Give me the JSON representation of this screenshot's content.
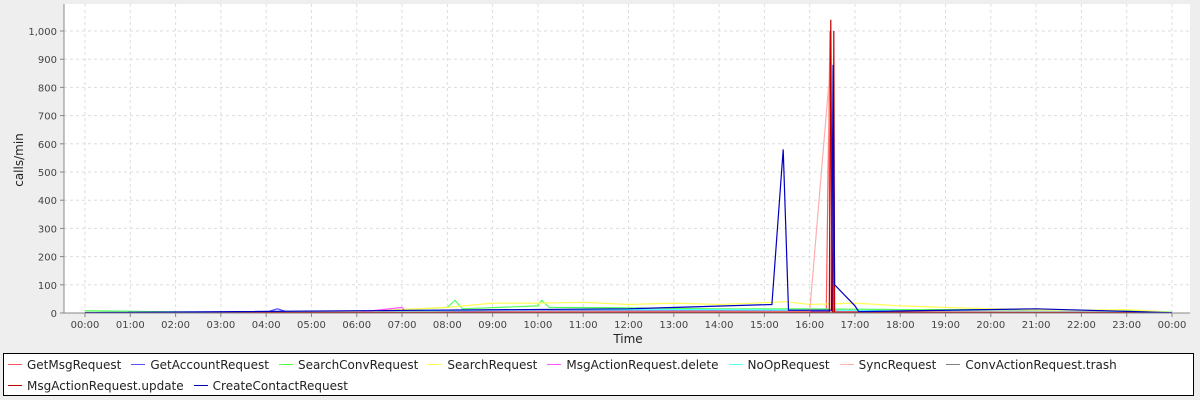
{
  "chart_data": {
    "type": "line",
    "title": "",
    "xlabel": "Time",
    "ylabel": "calls/min",
    "ylim": [
      0,
      1090
    ],
    "xlim": [
      "00:00",
      "24:00"
    ],
    "grid": true,
    "legend_position": "bottom",
    "yticks": [
      0,
      100,
      200,
      300,
      400,
      500,
      600,
      700,
      800,
      900,
      1000
    ],
    "ytick_labels": [
      "0",
      "100",
      "200",
      "300",
      "400",
      "500",
      "600",
      "700",
      "800",
      "900",
      "1,000"
    ],
    "xtick_labels": [
      "00:00",
      "01:00",
      "02:00",
      "03:00",
      "04:00",
      "05:00",
      "06:00",
      "07:00",
      "08:00",
      "09:00",
      "10:00",
      "11:00",
      "12:00",
      "13:00",
      "14:00",
      "15:00",
      "16:00",
      "17:00",
      "18:00",
      "19:00",
      "20:00",
      "21:00",
      "22:00",
      "23:00",
      "00:00"
    ],
    "series": [
      {
        "name": "GetMsgRequest",
        "color": "#ff5555",
        "points": [
          [
            "00:00",
            3
          ],
          [
            "03:00",
            2
          ],
          [
            "06:00",
            3
          ],
          [
            "08:00",
            8
          ],
          [
            "10:00",
            12
          ],
          [
            "12:00",
            12
          ],
          [
            "14:00",
            10
          ],
          [
            "16:00",
            10
          ],
          [
            "16:22",
            10
          ],
          [
            "16:27",
            1000
          ],
          [
            "16:30",
            10
          ],
          [
            "18:00",
            8
          ],
          [
            "20:00",
            6
          ],
          [
            "22:00",
            5
          ],
          [
            "24:00",
            3
          ]
        ]
      },
      {
        "name": "GetAccountRequest",
        "color": "#5555ff",
        "points": [
          [
            "00:00",
            2
          ],
          [
            "04:00",
            3
          ],
          [
            "04:15",
            15
          ],
          [
            "04:30",
            2
          ],
          [
            "08:00",
            5
          ],
          [
            "12:00",
            8
          ],
          [
            "16:00",
            6
          ],
          [
            "20:00",
            5
          ],
          [
            "24:00",
            2
          ]
        ]
      },
      {
        "name": "SearchConvRequest",
        "color": "#55ff55",
        "points": [
          [
            "00:00",
            8
          ],
          [
            "01:30",
            5
          ],
          [
            "03:00",
            3
          ],
          [
            "06:00",
            4
          ],
          [
            "08:00",
            20
          ],
          [
            "08:10",
            45
          ],
          [
            "08:20",
            15
          ],
          [
            "10:00",
            25
          ],
          [
            "10:05",
            45
          ],
          [
            "10:15",
            20
          ],
          [
            "12:00",
            18
          ],
          [
            "14:00",
            15
          ],
          [
            "16:00",
            15
          ],
          [
            "18:00",
            12
          ],
          [
            "20:00",
            12
          ],
          [
            "22:00",
            10
          ],
          [
            "24:00",
            4
          ]
        ]
      },
      {
        "name": "SearchRequest",
        "color": "#ffff55",
        "points": [
          [
            "00:00",
            3
          ],
          [
            "04:00",
            3
          ],
          [
            "06:00",
            5
          ],
          [
            "08:00",
            20
          ],
          [
            "09:00",
            35
          ],
          [
            "10:00",
            35
          ],
          [
            "11:00",
            38
          ],
          [
            "12:00",
            30
          ],
          [
            "13:00",
            35
          ],
          [
            "14:00",
            30
          ],
          [
            "15:30",
            40
          ],
          [
            "16:00",
            30
          ],
          [
            "17:00",
            35
          ],
          [
            "18:00",
            25
          ],
          [
            "19:00",
            20
          ],
          [
            "20:00",
            15
          ],
          [
            "21:00",
            12
          ],
          [
            "22:00",
            10
          ],
          [
            "23:00",
            12
          ],
          [
            "24:00",
            3
          ]
        ]
      },
      {
        "name": "MsgActionRequest.delete",
        "color": "#ff55ff",
        "points": [
          [
            "00:00",
            1
          ],
          [
            "06:00",
            2
          ],
          [
            "07:00",
            20
          ],
          [
            "07:05",
            2
          ],
          [
            "12:00",
            5
          ],
          [
            "14:00",
            4
          ],
          [
            "18:00",
            3
          ],
          [
            "24:00",
            1
          ]
        ]
      },
      {
        "name": "NoOpRequest",
        "color": "#55ffff",
        "points": [
          [
            "00:00",
            2
          ],
          [
            "06:00",
            3
          ],
          [
            "08:00",
            8
          ],
          [
            "10:00",
            12
          ],
          [
            "12:00",
            12
          ],
          [
            "14:00",
            12
          ],
          [
            "16:00",
            10
          ],
          [
            "18:00",
            8
          ],
          [
            "20:00",
            6
          ],
          [
            "24:00",
            2
          ]
        ]
      },
      {
        "name": "SyncRequest",
        "color": "#ffafaf",
        "points": [
          [
            "00:00",
            1
          ],
          [
            "07:00",
            3
          ],
          [
            "12:00",
            6
          ],
          [
            "16:00",
            5
          ],
          [
            "16:25",
            800
          ],
          [
            "16:28",
            5
          ],
          [
            "20:00",
            4
          ],
          [
            "24:00",
            1
          ]
        ]
      },
      {
        "name": "ConvActionRequest.trash",
        "color": "#808080",
        "points": [
          [
            "00:00",
            1
          ],
          [
            "12:00",
            2
          ],
          [
            "24:00",
            1
          ]
        ]
      },
      {
        "name": "MsgActionRequest.update",
        "color": "#c00000",
        "points": [
          [
            "00:00",
            1
          ],
          [
            "12:00",
            3
          ],
          [
            "16:26",
            3
          ],
          [
            "16:28",
            1040
          ],
          [
            "16:30",
            3
          ],
          [
            "16:31",
            3
          ],
          [
            "16:32",
            1000
          ],
          [
            "16:33",
            3
          ],
          [
            "24:00",
            1
          ]
        ]
      },
      {
        "name": "CreateContactRequest",
        "color": "#0000c0",
        "points": [
          [
            "00:00",
            1
          ],
          [
            "12:00",
            15
          ],
          [
            "15:10",
            30
          ],
          [
            "15:25",
            580
          ],
          [
            "15:32",
            10
          ],
          [
            "16:29",
            10
          ],
          [
            "16:31",
            880
          ],
          [
            "16:33",
            100
          ],
          [
            "17:00",
            25
          ],
          [
            "17:05",
            5
          ],
          [
            "21:00",
            15
          ],
          [
            "24:00",
            1
          ]
        ]
      }
    ]
  }
}
